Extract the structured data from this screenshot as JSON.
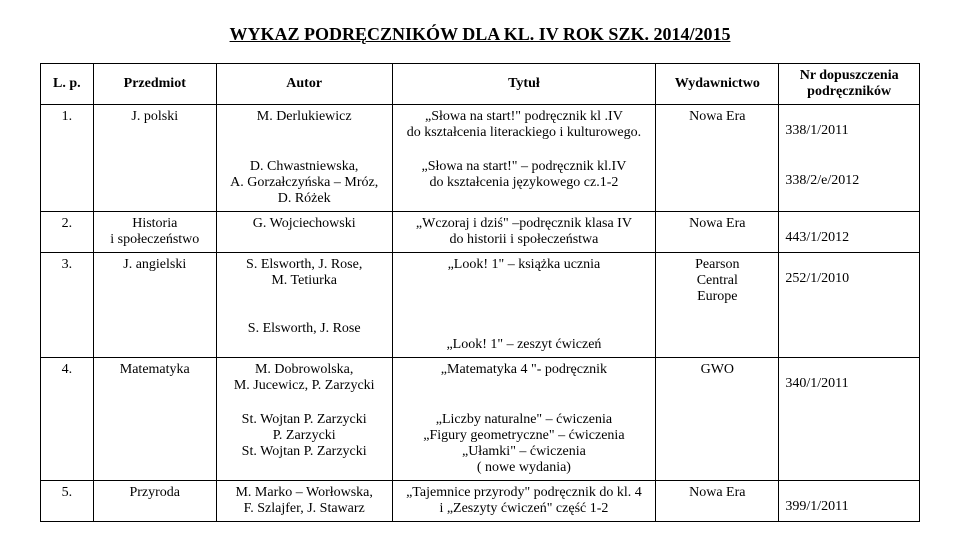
{
  "header_title": "WYKAZ PODRĘCZNIKÓW DLA KL. IV ROK SZK. 2014/2015",
  "columns": {
    "lp": "L. p.",
    "subject": "Przedmiot",
    "author": "Autor",
    "title": "Tytuł",
    "publisher": "Wydawnictwo",
    "nr": "Nr dopuszczenia podręczników"
  },
  "rows": [
    {
      "lp": "1.",
      "subject": "J. polski",
      "blocks": [
        {
          "author": "M. Derlukiewicz",
          "title": "„Słowa na start!\" podręcznik kl .IV\ndo kształcenia literackiego i kulturowego.",
          "publisher": "Nowa Era",
          "nr": "338/1/2011"
        },
        {
          "author": "D. Chwastniewska,\nA. Gorzałczyńska – Mróz,\nD. Różek",
          "title": "„Słowa na start!\" – podręcznik kl.IV\ndo kształcenia językowego cz.1-2",
          "publisher": "",
          "nr": "338/2/e/2012"
        }
      ]
    },
    {
      "lp": "2.",
      "subject": "Historia\ni społeczeństwo",
      "blocks": [
        {
          "author": "G. Wojciechowski",
          "title": "„Wczoraj i dziś\" –podręcznik klasa IV\ndo historii i społeczeństwa",
          "publisher": "Nowa Era",
          "nr": "443/1/2012"
        }
      ]
    },
    {
      "lp": "3.",
      "subject": "J. angielski",
      "blocks": [
        {
          "author": "S. Elsworth, J. Rose,\nM. Tetiurka\n\nS. Elsworth, J. Rose",
          "title": "„Look! 1\" – książka ucznia\n\n\n„Look! 1\" – zeszyt ćwiczeń",
          "publisher": "Pearson\nCentral\nEurope",
          "nr": "252/1/2010"
        }
      ]
    },
    {
      "lp": "4.",
      "subject": "Matematyka",
      "blocks": [
        {
          "author": "M. Dobrowolska,\nM. Jucewicz, P. Zarzycki",
          "title": "„Matematyka 4 \"- podręcznik",
          "publisher": "GWO",
          "nr": "340/1/2011"
        },
        {
          "author": "St. Wojtan P. Zarzycki\nP. Zarzycki\nSt. Wojtan P. Zarzycki",
          "title": "„Liczby naturalne\" – ćwiczenia\n„Figury geometryczne\" – ćwiczenia\n„Ułamki\" – ćwiczenia\n( nowe wydania)",
          "publisher": "",
          "nr": ""
        }
      ]
    },
    {
      "lp": "5.",
      "subject": "Przyroda",
      "blocks": [
        {
          "author": "M. Marko – Worłowska,\nF. Szlajfer, J. Stawarz",
          "title": "„Tajemnice przyrody\" podręcznik do kl. 4\ni „Zeszyty ćwiczeń\" część 1-2",
          "publisher": "Nowa Era",
          "nr": "399/1/2011"
        }
      ]
    }
  ]
}
